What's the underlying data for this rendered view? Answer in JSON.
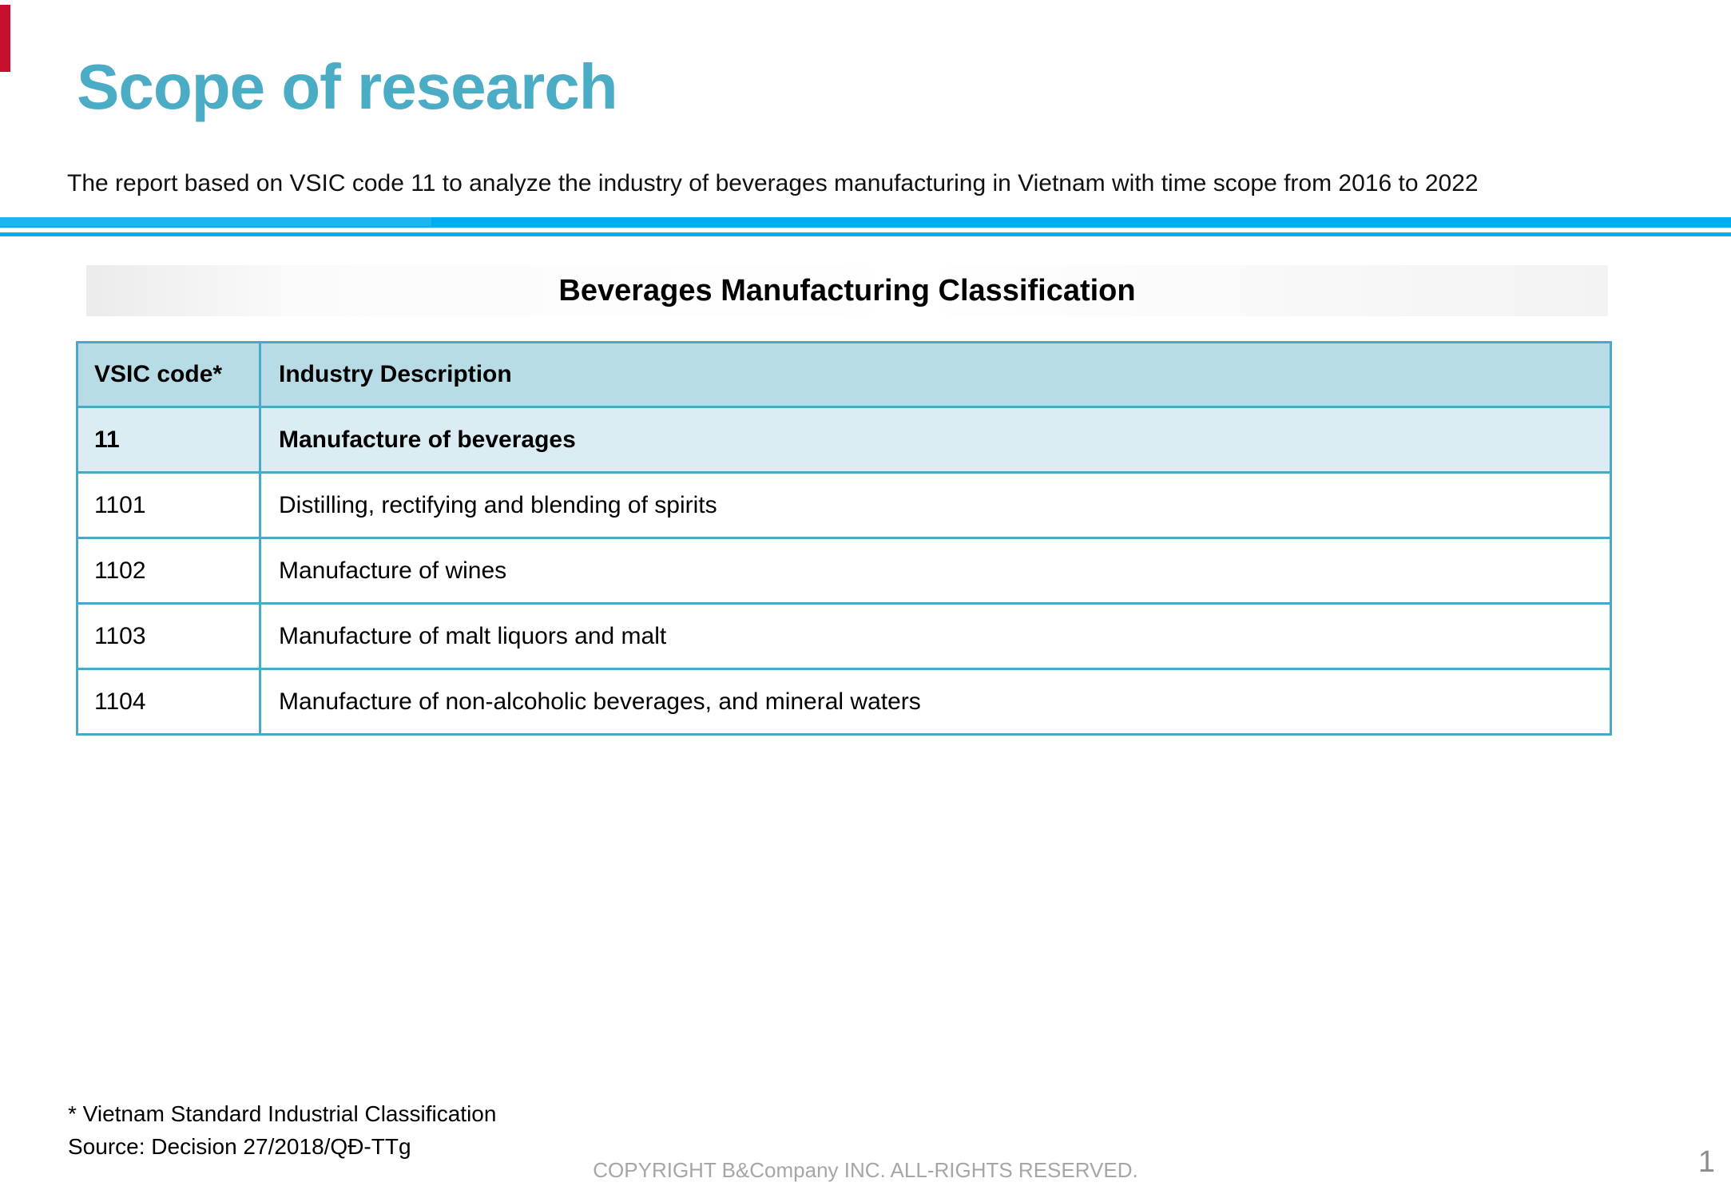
{
  "slide": {
    "title": "Scope of research",
    "intro": "The report based on VSIC code 11 to analyze the industry of beverages manufacturing in Vietnam with time scope from 2016 to 2022"
  },
  "classification": {
    "title": "Beverages Manufacturing Classification",
    "columns": [
      "VSIC code*",
      "Industry Description"
    ],
    "rows": [
      {
        "code": "11",
        "description": "Manufacture of beverages"
      },
      {
        "code": "1101",
        "description": "Distilling, rectifying and blending of spirits"
      },
      {
        "code": "1102",
        "description": "Manufacture of wines"
      },
      {
        "code": "1103",
        "description": "Manufacture of malt liquors and malt"
      },
      {
        "code": "1104",
        "description": "Manufacture of non-alcoholic beverages, and mineral waters"
      }
    ]
  },
  "footer": {
    "footnote": "* Vietnam Standard Industrial Classification",
    "source": "Source: Decision 27/2018/QĐ-TTg",
    "copyright": "COPYRIGHT B&Company INC. ALL-RIGHTS RESERVED.",
    "page_number": "1"
  },
  "colors": {
    "accent_teal": "#4BACC6",
    "divider_blue": "#00AEEF",
    "table_border": "#4AA9C6",
    "table_header_bg": "#B7DCE6",
    "highlight_row_bg": "#DBEDF3",
    "muted_gray": "#A6A6A6",
    "page_number_gray": "#8C8C8C",
    "red_accent": "#C8102E"
  }
}
